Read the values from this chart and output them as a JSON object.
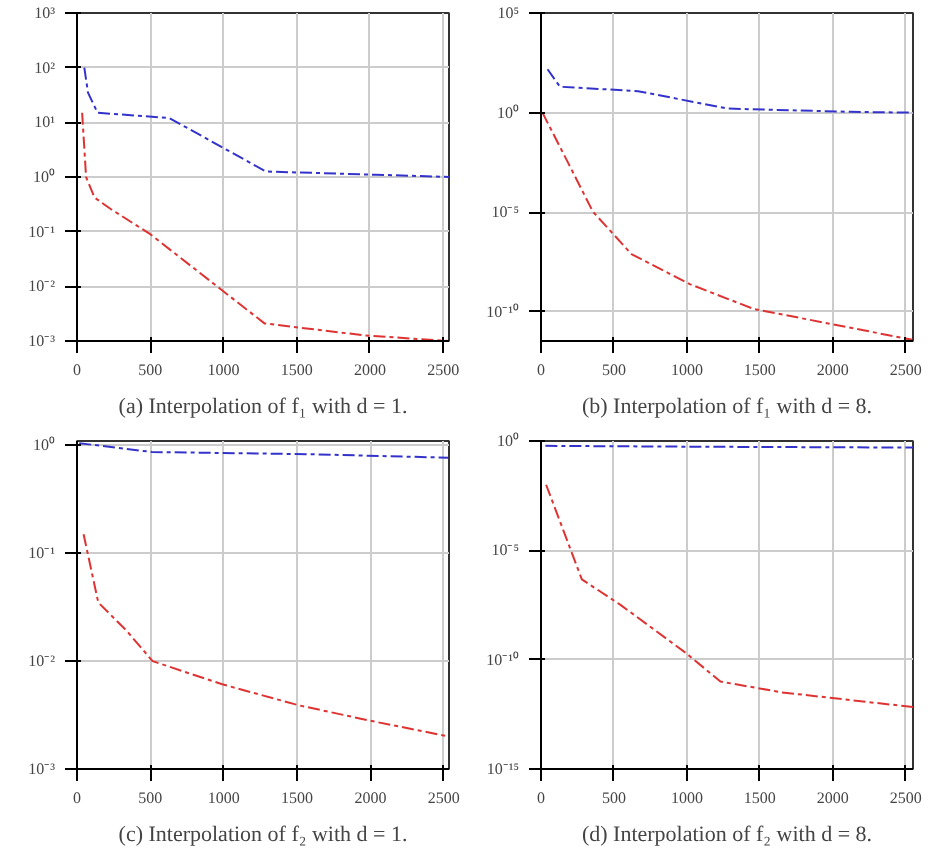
{
  "chart_data": [
    {
      "type": "line",
      "annotations": [
        "(a) Interpolation of f₁ with d = 1."
      ],
      "log": "y",
      "grid": true,
      "line_style": "dashed",
      "xlim": [
        0,
        2540
      ],
      "ylim": [
        0.001,
        1000
      ],
      "xticks": [
        0,
        500,
        1000,
        1500,
        2000,
        2500
      ],
      "yticks": [
        {
          "value": 0.001,
          "label": "10⁻³"
        },
        {
          "value": 0.01,
          "label": "10⁻²"
        },
        {
          "value": 0.1,
          "label": "10⁻¹"
        },
        {
          "value": 1,
          "label": "10⁰"
        },
        {
          "value": 10,
          "label": "10¹"
        },
        {
          "value": 100,
          "label": "10²"
        },
        {
          "value": 1000,
          "label": "10³"
        }
      ],
      "series": [
        {
          "color": "#3333cc",
          "x": [
            50,
            75,
            140,
            630,
            1290,
            2040,
            2540
          ],
          "values": [
            100,
            35,
            15,
            12,
            1.26,
            1.1,
            1.0
          ]
        },
        {
          "color": "#dd3333",
          "x": [
            35,
            62,
            120,
            230,
            500,
            1280,
            1970,
            2540
          ],
          "values": [
            15,
            1.0,
            0.42,
            0.26,
            0.09,
            0.0021,
            0.00126,
            0.001
          ]
        }
      ]
    },
    {
      "type": "line",
      "annotations": [
        "(b) Interpolation of f₁ with d = 8."
      ],
      "log": "y",
      "grid": true,
      "line_style": "dashed",
      "xlim": [
        0,
        2550
      ],
      "ylim": [
        3.5e-12,
        100000
      ],
      "xticks": [
        0,
        500,
        1000,
        1500,
        2000,
        2500
      ],
      "yticks": [
        {
          "value": 1e-10,
          "label": "10⁻¹⁰"
        },
        {
          "value": 1e-05,
          "label": "10⁻⁵"
        },
        {
          "value": 1,
          "label": "10⁰"
        },
        {
          "value": 100000,
          "label": "10⁵"
        }
      ],
      "series": [
        {
          "color": "#3333cc",
          "x": [
            45,
            130,
            665,
            1280,
            2120,
            2550
          ],
          "values": [
            150,
            20,
            12,
            1.6,
            1.1,
            1.0
          ]
        },
        {
          "color": "#dd3333",
          "x": [
            10,
            180,
            355,
            620,
            1020,
            1460,
            1990,
            2545
          ],
          "values": [
            1.0,
            0.0037,
            1.1e-05,
            8e-08,
            2.5e-09,
            1.4e-10,
            2.5e-11,
            4e-12
          ]
        }
      ]
    },
    {
      "type": "line",
      "annotations": [
        "(c) Interpolation of f₂ with d = 1."
      ],
      "log": "y",
      "grid": true,
      "line_style": "dashed",
      "xlim": [
        0,
        2535
      ],
      "ylim": [
        0.001,
        1.1
      ],
      "xticks": [
        0,
        500,
        1000,
        1500,
        2000,
        2500
      ],
      "yticks": [
        {
          "value": 0.001,
          "label": "10⁻³"
        },
        {
          "value": 0.01,
          "label": "10⁻²"
        },
        {
          "value": 0.1,
          "label": "10⁻¹"
        },
        {
          "value": 1,
          "label": "10⁰"
        }
      ],
      "series": [
        {
          "color": "#3333cc",
          "x": [
            15,
            510,
            1570,
            2530
          ],
          "values": [
            1.05,
            0.87,
            0.83,
            0.77
          ]
        },
        {
          "color": "#dd3333",
          "x": [
            45,
            145,
            340,
            515,
            990,
            1510,
            2000,
            2535
          ],
          "values": [
            0.15,
            0.035,
            0.019,
            0.01,
            0.0061,
            0.0039,
            0.0028,
            0.002
          ]
        }
      ]
    },
    {
      "type": "line",
      "annotations": [
        "(d) Interpolation of f₂ with d = 8."
      ],
      "log": "y",
      "grid": true,
      "line_style": "dashed",
      "xlim": [
        0,
        2550
      ],
      "ylim": [
        1e-15,
        1
      ],
      "xticks": [
        0,
        500,
        1000,
        1500,
        2000,
        2500
      ],
      "yticks": [
        {
          "value": 1e-15,
          "label": "10⁻¹⁵"
        },
        {
          "value": 1e-10,
          "label": "10⁻¹⁰"
        },
        {
          "value": 1e-05,
          "label": "10⁻⁵"
        },
        {
          "value": 1,
          "label": "10⁰"
        }
      ],
      "series": [
        {
          "color": "#3333cc",
          "x": [
            30,
            1000,
            2550
          ],
          "values": [
            0.6,
            0.55,
            0.5
          ]
        },
        {
          "color": "#dd3333",
          "x": [
            35,
            280,
            545,
            990,
            1230,
            1650,
            2550
          ],
          "values": [
            0.01,
            4.7e-07,
            3.2e-08,
            2.1e-10,
            1e-11,
            3.2e-12,
            6.8e-13
          ]
        }
      ]
    }
  ]
}
